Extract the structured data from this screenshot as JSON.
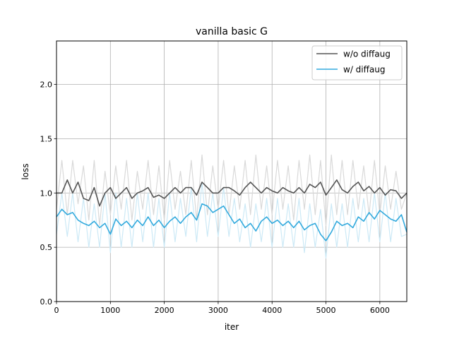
{
  "chart_data": {
    "type": "line",
    "title": "vanilla basic G",
    "xlabel": "iter",
    "ylabel": "loss",
    "xlim": [
      0,
      6500
    ],
    "ylim": [
      0.0,
      2.4
    ],
    "xticks": [
      0,
      1000,
      2000,
      3000,
      4000,
      5000,
      6000
    ],
    "xtick_labels": [
      "0",
      "1000",
      "2000",
      "3000",
      "4000",
      "5000",
      "6000"
    ],
    "yticks": [
      0.0,
      0.5,
      1.0,
      1.5,
      2.0
    ],
    "ytick_labels": [
      "0.0",
      "0.5",
      "1.0",
      "1.5",
      "2.0"
    ],
    "grid": true,
    "legend_position": "top-right",
    "series": [
      {
        "name": "w/o diffaug",
        "color": "#555555",
        "raw_color": "#d9d9d9",
        "x": [
          0,
          100,
          200,
          300,
          400,
          500,
          600,
          700,
          800,
          900,
          1000,
          1100,
          1200,
          1300,
          1400,
          1500,
          1600,
          1700,
          1800,
          1900,
          2000,
          2100,
          2200,
          2300,
          2400,
          2500,
          2600,
          2700,
          2800,
          2900,
          3000,
          3100,
          3200,
          3300,
          3400,
          3500,
          3600,
          3700,
          3800,
          3900,
          4000,
          4100,
          4200,
          4300,
          4400,
          4500,
          4600,
          4700,
          4800,
          4900,
          5000,
          5100,
          5200,
          5300,
          5400,
          5500,
          5600,
          5700,
          5800,
          5900,
          6000,
          6100,
          6200,
          6300,
          6400,
          6500
        ],
        "smoothed": [
          1.0,
          1.0,
          1.12,
          1.0,
          1.1,
          0.95,
          0.93,
          1.05,
          0.88,
          1.0,
          1.05,
          0.95,
          1.0,
          1.05,
          0.95,
          1.0,
          1.02,
          1.05,
          0.96,
          0.98,
          0.95,
          1.0,
          1.05,
          1.0,
          1.05,
          1.05,
          0.98,
          1.1,
          1.05,
          1.0,
          1.0,
          1.05,
          1.05,
          1.02,
          0.98,
          1.05,
          1.1,
          1.05,
          1.0,
          1.05,
          1.02,
          1.0,
          1.05,
          1.02,
          1.0,
          1.05,
          1.0,
          1.08,
          1.05,
          1.1,
          0.98,
          1.05,
          1.12,
          1.03,
          1.0,
          1.06,
          1.1,
          1.02,
          1.06,
          1.0,
          1.05,
          0.98,
          1.03,
          1.02,
          0.95,
          1.0
        ],
        "raw": [
          0.85,
          1.3,
          0.8,
          1.3,
          0.9,
          1.25,
          0.75,
          1.3,
          0.7,
          1.2,
          0.8,
          1.25,
          0.85,
          1.3,
          0.75,
          1.2,
          0.85,
          1.3,
          0.8,
          1.25,
          0.75,
          1.3,
          0.85,
          1.2,
          0.8,
          1.3,
          0.75,
          1.35,
          0.8,
          1.25,
          0.85,
          1.3,
          0.8,
          1.25,
          0.85,
          1.3,
          0.8,
          1.35,
          0.85,
          1.25,
          0.8,
          1.3,
          0.85,
          1.25,
          0.75,
          1.3,
          0.85,
          1.35,
          0.8,
          1.3,
          0.7,
          1.35,
          0.8,
          1.3,
          0.8,
          1.3,
          0.85,
          1.25,
          0.8,
          1.3,
          0.8,
          1.25,
          0.85,
          1.2,
          0.85,
          1.0
        ]
      },
      {
        "name": "w/ diffaug",
        "color": "#33aadd",
        "raw_color": "#cce9f6",
        "x": [
          0,
          100,
          200,
          300,
          400,
          500,
          600,
          700,
          800,
          900,
          1000,
          1100,
          1200,
          1300,
          1400,
          1500,
          1600,
          1700,
          1800,
          1900,
          2000,
          2100,
          2200,
          2300,
          2400,
          2500,
          2600,
          2700,
          2800,
          2900,
          3000,
          3100,
          3200,
          3300,
          3400,
          3500,
          3600,
          3700,
          3800,
          3900,
          4000,
          4100,
          4200,
          4300,
          4400,
          4500,
          4600,
          4700,
          4800,
          4900,
          5000,
          5100,
          5200,
          5300,
          5400,
          5500,
          5600,
          5700,
          5800,
          5900,
          6000,
          6100,
          6200,
          6300,
          6400,
          6500
        ],
        "smoothed": [
          0.78,
          0.85,
          0.8,
          0.82,
          0.75,
          0.72,
          0.7,
          0.74,
          0.68,
          0.72,
          0.62,
          0.76,
          0.7,
          0.74,
          0.68,
          0.75,
          0.7,
          0.78,
          0.7,
          0.75,
          0.68,
          0.74,
          0.78,
          0.72,
          0.78,
          0.82,
          0.75,
          0.9,
          0.88,
          0.82,
          0.85,
          0.88,
          0.8,
          0.72,
          0.76,
          0.68,
          0.72,
          0.65,
          0.74,
          0.78,
          0.72,
          0.75,
          0.7,
          0.74,
          0.68,
          0.74,
          0.66,
          0.7,
          0.72,
          0.62,
          0.56,
          0.64,
          0.74,
          0.7,
          0.72,
          0.68,
          0.78,
          0.74,
          0.82,
          0.76,
          0.84,
          0.8,
          0.76,
          0.74,
          0.8,
          0.64
        ],
        "raw": [
          0.62,
          1.0,
          0.6,
          1.0,
          0.55,
          0.95,
          0.5,
          0.9,
          0.5,
          1.0,
          0.45,
          1.0,
          0.5,
          0.95,
          0.5,
          1.0,
          0.55,
          1.0,
          0.5,
          0.95,
          0.5,
          1.0,
          0.55,
          0.95,
          0.6,
          1.05,
          0.55,
          1.1,
          0.6,
          1.0,
          0.6,
          1.05,
          0.6,
          0.95,
          0.55,
          0.9,
          0.5,
          0.9,
          0.55,
          0.95,
          0.5,
          0.95,
          0.5,
          0.9,
          0.5,
          0.95,
          0.45,
          0.9,
          0.5,
          0.85,
          0.4,
          0.9,
          0.5,
          0.9,
          0.5,
          0.95,
          0.55,
          0.95,
          0.55,
          1.0,
          0.55,
          1.0,
          0.55,
          0.95,
          0.6,
          0.62
        ]
      }
    ]
  }
}
